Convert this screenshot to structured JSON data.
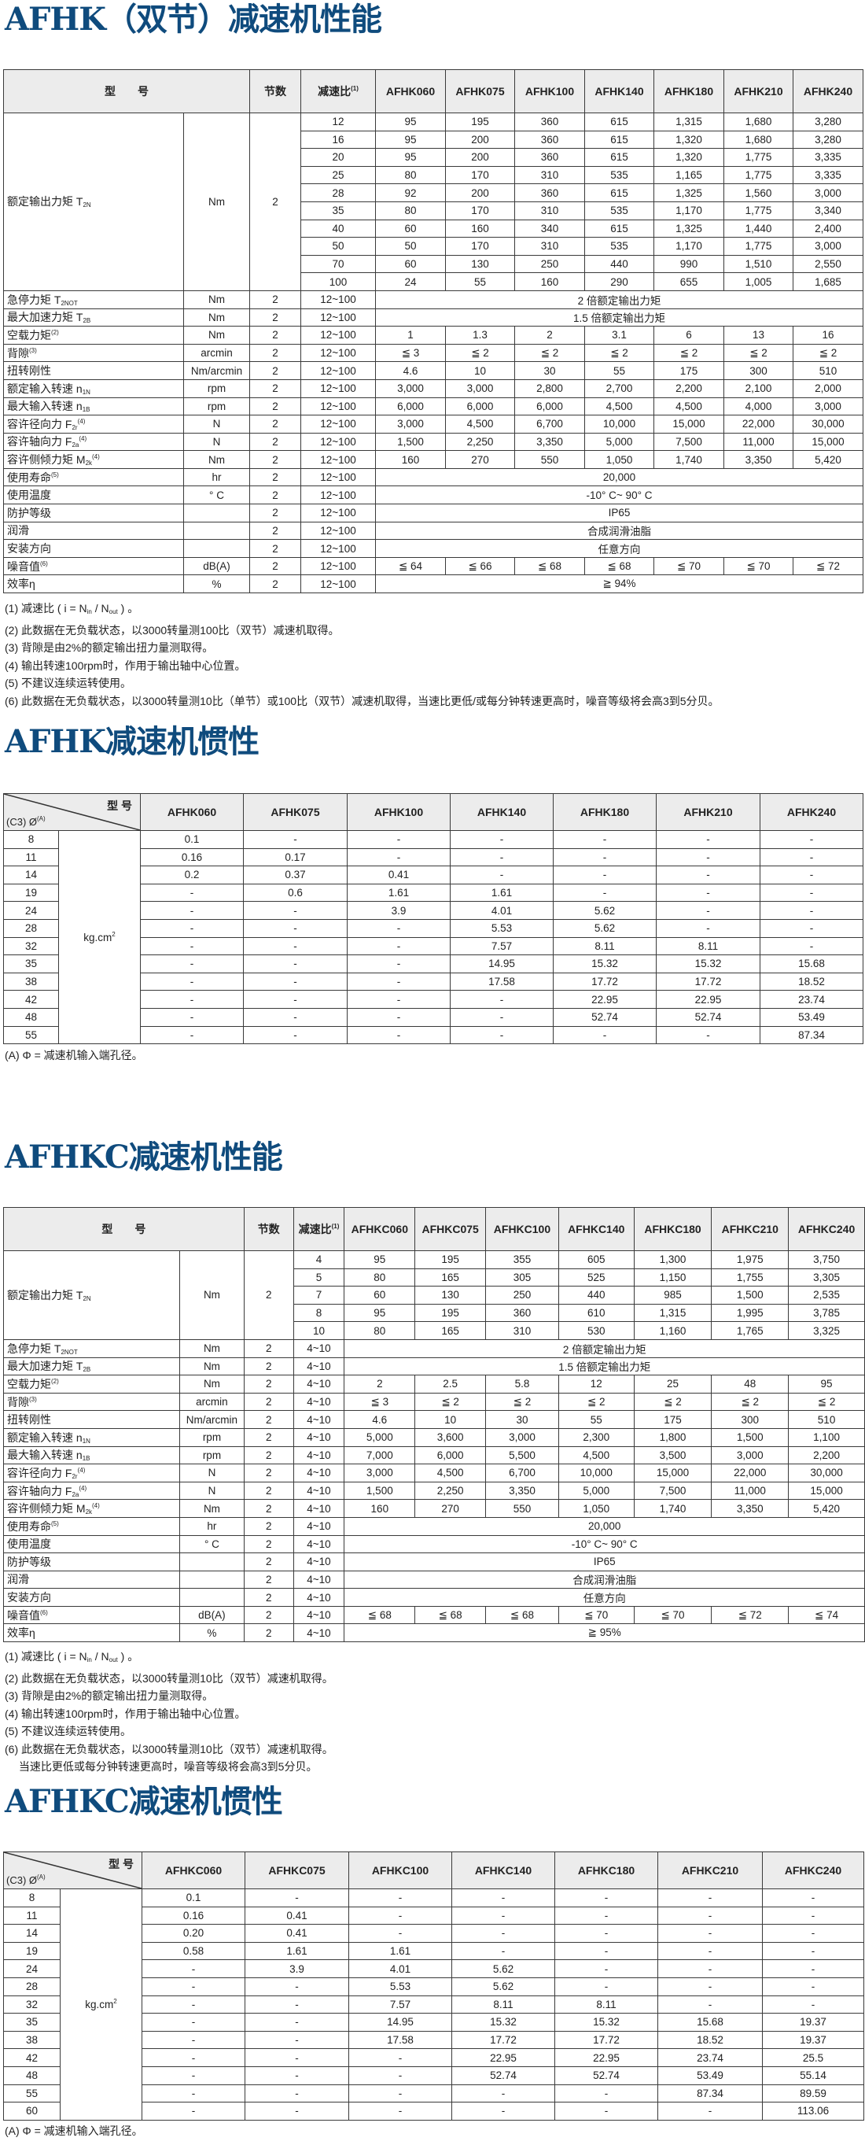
{
  "perf1": {
    "title": "AFHK（双节）减速机性能",
    "header": {
      "model": "型　　号",
      "stage": "节数",
      "ratio": "减速比",
      "ratio_sup": "(1)"
    },
    "models": [
      "AFHK060",
      "AFHK075",
      "AFHK100",
      "AFHK140",
      "AFHK180",
      "AFHK210",
      "AFHK240"
    ],
    "rated": {
      "label": "额定输出力矩 T",
      "sub": "2N",
      "unit": "Nm",
      "stage": "2",
      "rows": [
        {
          "ratio": "12",
          "values": [
            "95",
            "195",
            "360",
            "615",
            "1,315",
            "1,680",
            "3,280"
          ]
        },
        {
          "ratio": "16",
          "values": [
            "95",
            "200",
            "360",
            "615",
            "1,320",
            "1,680",
            "3,280"
          ]
        },
        {
          "ratio": "20",
          "values": [
            "95",
            "200",
            "360",
            "615",
            "1,320",
            "1,775",
            "3,335"
          ]
        },
        {
          "ratio": "25",
          "values": [
            "80",
            "170",
            "310",
            "535",
            "1,165",
            "1,775",
            "3,335"
          ]
        },
        {
          "ratio": "28",
          "values": [
            "92",
            "200",
            "360",
            "615",
            "1,325",
            "1,560",
            "3,000"
          ]
        },
        {
          "ratio": "35",
          "values": [
            "80",
            "170",
            "310",
            "535",
            "1,170",
            "1,775",
            "3,340"
          ]
        },
        {
          "ratio": "40",
          "values": [
            "60",
            "160",
            "340",
            "615",
            "1,325",
            "1,440",
            "2,400"
          ]
        },
        {
          "ratio": "50",
          "values": [
            "50",
            "170",
            "310",
            "535",
            "1,170",
            "1,775",
            "3,000"
          ]
        },
        {
          "ratio": "70",
          "values": [
            "60",
            "130",
            "250",
            "440",
            "990",
            "1,510",
            "2,550"
          ]
        },
        {
          "ratio": "100",
          "values": [
            "24",
            "55",
            "160",
            "290",
            "655",
            "1,005",
            "1,685"
          ]
        }
      ]
    },
    "specs": [
      {
        "label": "急停力矩 T",
        "sub": "2NOT",
        "unit": "Nm",
        "stage": "2",
        "ratio": "12~100",
        "merged": "2 倍额定输出力矩"
      },
      {
        "label": "最大加速力矩 T",
        "sub": "2B",
        "unit": "Nm",
        "stage": "2",
        "ratio": "12~100",
        "merged": "1.5 倍额定输出力矩"
      },
      {
        "label": "空载力矩",
        "sup": "(2)",
        "unit": "Nm",
        "stage": "2",
        "ratio": "12~100",
        "values": [
          "1",
          "1.3",
          "2",
          "3.1",
          "6",
          "13",
          "16"
        ]
      },
      {
        "label": "背隙",
        "sup": "(3)",
        "unit": "arcmin",
        "stage": "2",
        "ratio": "12~100",
        "values": [
          "≦ 3",
          "≦ 2",
          "≦ 2",
          "≦ 2",
          "≦ 2",
          "≦ 2",
          "≦ 2"
        ]
      },
      {
        "label": "扭转刚性",
        "unit": "Nm/arcmin",
        "stage": "2",
        "ratio": "12~100",
        "values": [
          "4.6",
          "10",
          "30",
          "55",
          "175",
          "300",
          "510"
        ]
      },
      {
        "label": "额定输入转速 n",
        "sub": "1N",
        "unit": "rpm",
        "stage": "2",
        "ratio": "12~100",
        "values": [
          "3,000",
          "3,000",
          "2,800",
          "2,700",
          "2,200",
          "2,100",
          "2,000"
        ]
      },
      {
        "label": "最大输入转速 n",
        "sub": "1B",
        "unit": "rpm",
        "stage": "2",
        "ratio": "12~100",
        "values": [
          "6,000",
          "6,000",
          "6,000",
          "4,500",
          "4,500",
          "4,000",
          "3,000"
        ]
      },
      {
        "label": "容许径向力 F",
        "sub": "2r",
        "sup": "(4)",
        "unit": "N",
        "stage": "2",
        "ratio": "12~100",
        "values": [
          "3,000",
          "4,500",
          "6,700",
          "10,000",
          "15,000",
          "22,000",
          "30,000"
        ]
      },
      {
        "label": "容许轴向力 F",
        "sub": "2a",
        "sup": "(4)",
        "unit": "N",
        "stage": "2",
        "ratio": "12~100",
        "values": [
          "1,500",
          "2,250",
          "3,350",
          "5,000",
          "7,500",
          "11,000",
          "15,000"
        ]
      },
      {
        "label": "容许侧倾力矩 M",
        "sub": "2k",
        "sup": "(4)",
        "unit": "Nm",
        "stage": "2",
        "ratio": "12~100",
        "values": [
          "160",
          "270",
          "550",
          "1,050",
          "1,740",
          "3,350",
          "5,420"
        ]
      },
      {
        "label": "使用寿命",
        "sup": "(5)",
        "unit": "hr",
        "stage": "2",
        "ratio": "12~100",
        "merged": "20,000"
      },
      {
        "label": "使用温度",
        "unit": "° C",
        "stage": "2",
        "ratio": "12~100",
        "merged": "-10° C~ 90° C"
      },
      {
        "label": "防护等级",
        "unit": "",
        "stage": "2",
        "ratio": "12~100",
        "merged": "IP65"
      },
      {
        "label": "润滑",
        "unit": "",
        "stage": "2",
        "ratio": "12~100",
        "merged": "合成润滑油脂"
      },
      {
        "label": "安装方向",
        "unit": "",
        "stage": "2",
        "ratio": "12~100",
        "merged": "任意方向"
      },
      {
        "label": "噪音值",
        "sup": "(6)",
        "unit": "dB(A)",
        "stage": "2",
        "ratio": "12~100",
        "values": [
          "≦ 64",
          "≦ 66",
          "≦ 68",
          "≦ 68",
          "≦ 70",
          "≦ 70",
          "≦ 72"
        ]
      },
      {
        "label": "效率η",
        "unit": "%",
        "stage": "2",
        "ratio": "12~100",
        "merged": "≧ 94%"
      }
    ],
    "notes": {
      "n1": [
        "(1) 减速比 ( i = N",
        "in",
        " / N",
        "out",
        " ) 。"
      ],
      "lines": [
        "(2) 此数据在无负载状态，以3000转量测100比（双节）减速机取得。",
        "(3) 背隙是由2%的额定输出扭力量测取得。",
        "(4) 输出转速100rpm时，作用于输出轴中心位置。",
        "(5) 不建议连续运转使用。",
        "(6) 此数据在无负载状态，以3000转量测10比（单节）或100比（双节）减速机取得，当速比更低/或每分钟转速更高时，噪音等级将会高3到5分贝。"
      ]
    }
  },
  "inertia1": {
    "title": "AFHK减速机惯性",
    "corner_model": "型 号",
    "corner_bore": "(C3) Ø",
    "corner_bore_sup": "(A)",
    "unit": "kg.cm",
    "unit_sup": "2",
    "models": [
      "AFHK060",
      "AFHK075",
      "AFHK100",
      "AFHK140",
      "AFHK180",
      "AFHK210",
      "AFHK240"
    ],
    "rows": [
      {
        "bore": "8",
        "values": [
          "0.1",
          "-",
          "-",
          "-",
          "-",
          "-",
          "-"
        ]
      },
      {
        "bore": "11",
        "values": [
          "0.16",
          "0.17",
          "-",
          "-",
          "-",
          "-",
          "-"
        ]
      },
      {
        "bore": "14",
        "values": [
          "0.2",
          "0.37",
          "0.41",
          "-",
          "-",
          "-",
          "-"
        ]
      },
      {
        "bore": "19",
        "values": [
          "-",
          "0.6",
          "1.61",
          "1.61",
          "-",
          "-",
          "-"
        ]
      },
      {
        "bore": "24",
        "values": [
          "-",
          "-",
          "3.9",
          "4.01",
          "5.62",
          "-",
          "-"
        ]
      },
      {
        "bore": "28",
        "values": [
          "-",
          "-",
          "-",
          "5.53",
          "5.62",
          "-",
          "-"
        ]
      },
      {
        "bore": "32",
        "values": [
          "-",
          "-",
          "-",
          "7.57",
          "8.11",
          "8.11",
          "-"
        ]
      },
      {
        "bore": "35",
        "values": [
          "-",
          "-",
          "-",
          "14.95",
          "15.32",
          "15.32",
          "15.68"
        ]
      },
      {
        "bore": "38",
        "values": [
          "-",
          "-",
          "-",
          "17.58",
          "17.72",
          "17.72",
          "18.52"
        ]
      },
      {
        "bore": "42",
        "values": [
          "-",
          "-",
          "-",
          "-",
          "22.95",
          "22.95",
          "23.74"
        ]
      },
      {
        "bore": "48",
        "values": [
          "-",
          "-",
          "-",
          "-",
          "52.74",
          "52.74",
          "53.49"
        ]
      },
      {
        "bore": "55",
        "values": [
          "-",
          "-",
          "-",
          "-",
          "-",
          "-",
          "87.34"
        ]
      }
    ],
    "note": "(A)  Φ = 减速机输入端孔径。"
  },
  "perf2": {
    "title": "AFHKC减速机性能",
    "header": {
      "model": "型　　号",
      "stage": "节数",
      "ratio": "减速比",
      "ratio_sup": "(1)"
    },
    "models": [
      "AFHKC060",
      "AFHKC075",
      "AFHKC100",
      "AFHKC140",
      "AFHKC180",
      "AFHKC210",
      "AFHKC240"
    ],
    "rated": {
      "label": "额定输出力矩 T",
      "sub": "2N",
      "unit": "Nm",
      "stage": "2",
      "rows": [
        {
          "ratio": "4",
          "values": [
            "95",
            "195",
            "355",
            "605",
            "1,300",
            "1,975",
            "3,750"
          ]
        },
        {
          "ratio": "5",
          "values": [
            "80",
            "165",
            "305",
            "525",
            "1,150",
            "1,755",
            "3,305"
          ]
        },
        {
          "ratio": "7",
          "values": [
            "60",
            "130",
            "250",
            "440",
            "985",
            "1,500",
            "2,535"
          ]
        },
        {
          "ratio": "8",
          "values": [
            "95",
            "195",
            "360",
            "610",
            "1,315",
            "1,995",
            "3,785"
          ]
        },
        {
          "ratio": "10",
          "values": [
            "80",
            "165",
            "310",
            "530",
            "1,160",
            "1,765",
            "3,325"
          ]
        }
      ]
    },
    "specs": [
      {
        "label": "急停力矩 T",
        "sub": "2NOT",
        "unit": "Nm",
        "stage": "2",
        "ratio": "4~10",
        "merged": "2 倍额定输出力矩"
      },
      {
        "label": "最大加速力矩 T",
        "sub": "2B",
        "unit": "Nm",
        "stage": "2",
        "ratio": "4~10",
        "merged": "1.5 倍额定输出力矩"
      },
      {
        "label": "空载力矩",
        "sup": "(2)",
        "unit": "Nm",
        "stage": "2",
        "ratio": "4~10",
        "values": [
          "2",
          "2.5",
          "5.8",
          "12",
          "25",
          "48",
          "95"
        ]
      },
      {
        "label": "背隙",
        "sup": "(3)",
        "unit": "arcmin",
        "stage": "2",
        "ratio": "4~10",
        "values": [
          "≦ 3",
          "≦ 2",
          "≦ 2",
          "≦ 2",
          "≦ 2",
          "≦ 2",
          "≦ 2"
        ]
      },
      {
        "label": "扭转刚性",
        "unit": "Nm/arcmin",
        "stage": "2",
        "ratio": "4~10",
        "values": [
          "4.6",
          "10",
          "30",
          "55",
          "175",
          "300",
          "510"
        ]
      },
      {
        "label": "额定输入转速 n",
        "sub": "1N",
        "unit": "rpm",
        "stage": "2",
        "ratio": "4~10",
        "values": [
          "5,000",
          "3,600",
          "3,000",
          "2,300",
          "1,800",
          "1,500",
          "1,100"
        ]
      },
      {
        "label": "最大输入转速 n",
        "sub": "1B",
        "unit": "rpm",
        "stage": "2",
        "ratio": "4~10",
        "values": [
          "7,000",
          "6,000",
          "5,500",
          "4,500",
          "3,500",
          "3,000",
          "2,200"
        ]
      },
      {
        "label": "容许径向力 F",
        "sub": "2r",
        "sup": "(4)",
        "unit": "N",
        "stage": "2",
        "ratio": "4~10",
        "values": [
          "3,000",
          "4,500",
          "6,700",
          "10,000",
          "15,000",
          "22,000",
          "30,000"
        ]
      },
      {
        "label": "容许轴向力 F",
        "sub": "2a",
        "sup": "(4)",
        "unit": "N",
        "stage": "2",
        "ratio": "4~10",
        "values": [
          "1,500",
          "2,250",
          "3,350",
          "5,000",
          "7,500",
          "11,000",
          "15,000"
        ]
      },
      {
        "label": "容许侧倾力矩 M",
        "sub": "2k",
        "sup": "(4)",
        "unit": "Nm",
        "stage": "2",
        "ratio": "4~10",
        "values": [
          "160",
          "270",
          "550",
          "1,050",
          "1,740",
          "3,350",
          "5,420"
        ]
      },
      {
        "label": "使用寿命",
        "sup": "(5)",
        "unit": "hr",
        "stage": "2",
        "ratio": "4~10",
        "merged": "20,000"
      },
      {
        "label": "使用温度",
        "unit": "° C",
        "stage": "2",
        "ratio": "4~10",
        "merged": "-10° C~ 90° C"
      },
      {
        "label": "防护等级",
        "unit": "",
        "stage": "2",
        "ratio": "4~10",
        "merged": "IP65"
      },
      {
        "label": "润滑",
        "unit": "",
        "stage": "2",
        "ratio": "4~10",
        "merged": "合成润滑油脂"
      },
      {
        "label": "安装方向",
        "unit": "",
        "stage": "2",
        "ratio": "4~10",
        "merged": "任意方向"
      },
      {
        "label": "噪音值",
        "sup": "(6)",
        "unit": "dB(A)",
        "stage": "2",
        "ratio": "4~10",
        "values": [
          "≦ 68",
          "≦ 68",
          "≦ 68",
          "≦ 70",
          "≦ 70",
          "≦ 72",
          "≦ 74"
        ]
      },
      {
        "label": "效率η",
        "unit": "%",
        "stage": "2",
        "ratio": "4~10",
        "merged": "≧ 95%"
      }
    ],
    "notes": {
      "n1": [
        "(1) 减速比 ( i = N",
        "in",
        " / N",
        "out",
        " ) 。"
      ],
      "lines": [
        "(2) 此数据在无负载状态，以3000转量测10比（双节）减速机取得。",
        "(3) 背隙是由2%的额定输出扭力量测取得。",
        "(4) 输出转速100rpm时，作用于输出轴中心位置。",
        "(5) 不建议连续运转使用。",
        "(6) 此数据在无负载状态，以3000转量测10比（双节）减速机取得。",
        "　 当速比更低或每分钟转速更高时，噪音等级将会高3到5分贝。"
      ]
    }
  },
  "inertia2": {
    "title": "AFHKC减速机惯性",
    "corner_model": "型 号",
    "corner_bore": "(C3) Ø",
    "corner_bore_sup": "(A)",
    "unit": "kg.cm",
    "unit_sup": "2",
    "models": [
      "AFHKC060",
      "AFHKC075",
      "AFHKC100",
      "AFHKC140",
      "AFHKC180",
      "AFHKC210",
      "AFHKC240"
    ],
    "rows": [
      {
        "bore": "8",
        "values": [
          "0.1",
          "-",
          "-",
          "-",
          "-",
          "-",
          "-"
        ]
      },
      {
        "bore": "11",
        "values": [
          "0.16",
          "0.41",
          "-",
          "-",
          "-",
          "-",
          "-"
        ]
      },
      {
        "bore": "14",
        "values": [
          "0.20",
          "0.41",
          "-",
          "-",
          "-",
          "-",
          "-"
        ]
      },
      {
        "bore": "19",
        "values": [
          "0.58",
          "1.61",
          "1.61",
          "-",
          "-",
          "-",
          "-"
        ]
      },
      {
        "bore": "24",
        "values": [
          "-",
          "3.9",
          "4.01",
          "5.62",
          "-",
          "-",
          "-"
        ]
      },
      {
        "bore": "28",
        "values": [
          "-",
          "-",
          "5.53",
          "5.62",
          "-",
          "-",
          "-"
        ]
      },
      {
        "bore": "32",
        "values": [
          "-",
          "-",
          "7.57",
          "8.11",
          "8.11",
          "-",
          "-"
        ]
      },
      {
        "bore": "35",
        "values": [
          "-",
          "-",
          "14.95",
          "15.32",
          "15.32",
          "15.68",
          "19.37"
        ]
      },
      {
        "bore": "38",
        "values": [
          "-",
          "-",
          "17.58",
          "17.72",
          "17.72",
          "18.52",
          "19.37"
        ]
      },
      {
        "bore": "42",
        "values": [
          "-",
          "-",
          "-",
          "22.95",
          "22.95",
          "23.74",
          "25.5"
        ]
      },
      {
        "bore": "48",
        "values": [
          "-",
          "-",
          "-",
          "52.74",
          "52.74",
          "53.49",
          "55.14"
        ]
      },
      {
        "bore": "55",
        "values": [
          "-",
          "-",
          "-",
          "-",
          "-",
          "87.34",
          "89.59"
        ]
      },
      {
        "bore": "60",
        "values": [
          "-",
          "-",
          "-",
          "-",
          "-",
          "-",
          "113.06"
        ]
      }
    ],
    "note": "(A)  Φ = 减速机输入端孔径。"
  }
}
